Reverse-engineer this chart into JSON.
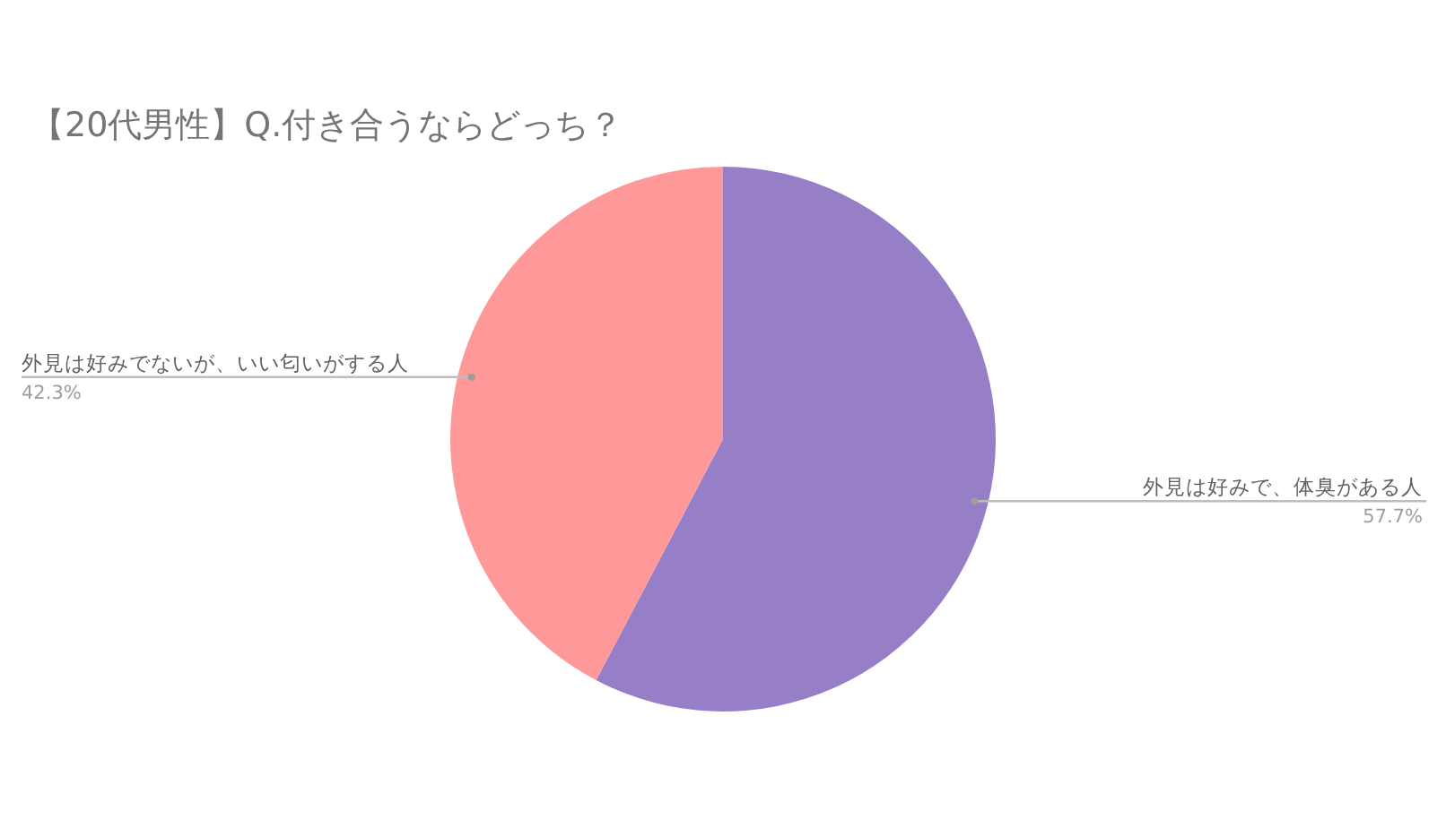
{
  "chart_data": {
    "type": "pie",
    "title": "【20代男性】Q.付き合うならどっち？",
    "categories": [
      "外見は好みで、体臭がある人",
      "外見は好みでないが、いい匂いがする人"
    ],
    "values": [
      57.7,
      42.3
    ],
    "colors": [
      "#977fc7",
      "#ff9999"
    ],
    "value_labels": [
      "57.7%",
      "42.3%"
    ]
  }
}
